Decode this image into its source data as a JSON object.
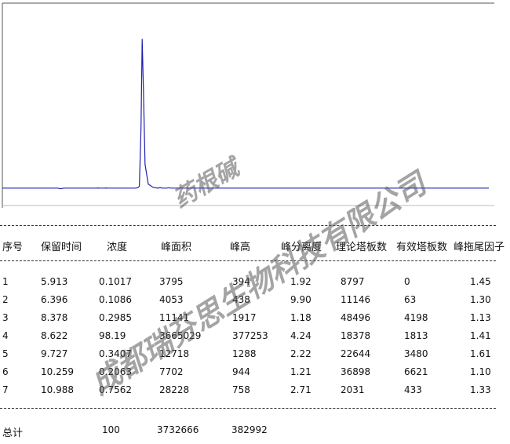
{
  "chart_data": {
    "type": "line",
    "x": [
      0,
      3.4,
      3.6,
      3.8,
      5.8,
      5.913,
      6.0,
      6.3,
      6.396,
      6.5,
      8.25,
      8.378,
      8.45,
      8.55,
      8.622,
      8.7,
      8.8,
      9.0,
      9.3,
      9.6,
      9.727,
      9.85,
      10.15,
      10.259,
      10.35,
      10.9,
      10.988,
      11.1,
      30
    ],
    "series": [
      {
        "color": "#1f1fb0",
        "values": [
          0,
          0,
          -1500,
          0,
          0,
          394,
          0,
          0,
          438,
          0,
          0,
          1917,
          5000,
          150000,
          377253,
          250000,
          60000,
          10000,
          2000,
          0,
          1288,
          0,
          0,
          944,
          0,
          0,
          758,
          0,
          0
        ]
      }
    ],
    "xlim": [
      0,
      30
    ],
    "ylim": [
      -44000,
      460000
    ]
  },
  "table": {
    "header": [
      "序号",
      "保留时间",
      "浓度",
      "峰面积",
      "峰高",
      "峰分离度",
      "理论塔板数",
      "有效塔板数",
      "峰拖尾因子"
    ],
    "rows": [
      [
        "1",
        "5.913",
        "0.1017",
        "3795",
        "394",
        "1.92",
        "8797",
        "0",
        "1.45"
      ],
      [
        "2",
        "6.396",
        "0.1086",
        "4053",
        "438",
        "9.90",
        "11146",
        "63",
        "1.30"
      ],
      [
        "3",
        "8.378",
        "0.2985",
        "11141",
        "1917",
        "1.18",
        "48496",
        "4198",
        "1.13"
      ],
      [
        "4",
        "8.622",
        "98.19",
        "3665029",
        "377253",
        "4.24",
        "18378",
        "1813",
        "1.41"
      ],
      [
        "5",
        "9.727",
        "0.3407",
        "12718",
        "1288",
        "2.22",
        "22644",
        "3480",
        "1.61"
      ],
      [
        "6",
        "10.259",
        "0.2063",
        "7702",
        "944",
        "1.21",
        "36898",
        "6621",
        "1.10"
      ],
      [
        "7",
        "10.988",
        "0.7562",
        "28228",
        "758",
        "2.71",
        "2031",
        "433",
        "1.33"
      ]
    ],
    "total": [
      "总计",
      "100",
      "3732666",
      "382992"
    ]
  },
  "watermark": {
    "product": "药根碱",
    "company": "成都瑞芬思生物科技有限公司"
  }
}
